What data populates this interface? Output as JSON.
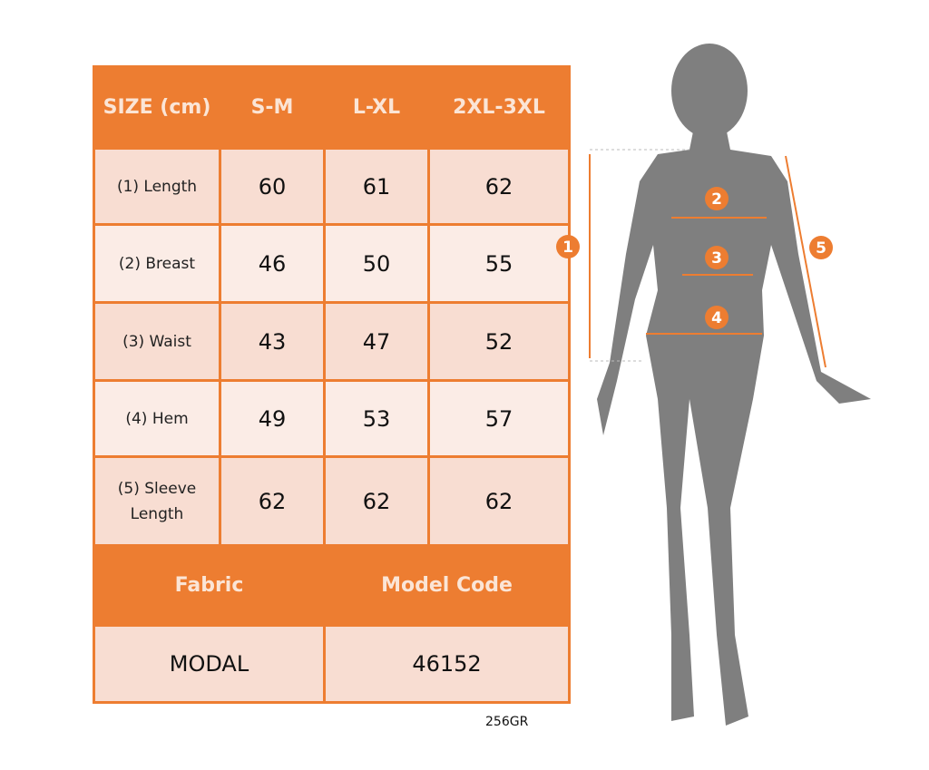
{
  "header": {
    "size": "SIZE (cm)",
    "columns": [
      "S-M",
      "L-XL",
      "2XL-3XL"
    ]
  },
  "rows": [
    {
      "label": "(1) Length",
      "values": [
        "60",
        "61",
        "62"
      ]
    },
    {
      "label": "(2) Breast",
      "values": [
        "46",
        "50",
        "55"
      ]
    },
    {
      "label": "(3) Waist",
      "values": [
        "43",
        "47",
        "52"
      ]
    },
    {
      "label": "(4) Hem",
      "values": [
        "49",
        "53",
        "57"
      ]
    },
    {
      "label": "(5) Sleeve Length",
      "values": [
        "62",
        "62",
        "62"
      ]
    }
  ],
  "footer": {
    "fabric_label": "Fabric",
    "model_code_label": "Model Code",
    "fabric": "MODAL",
    "model_code": "46152"
  },
  "code": "256GR",
  "markers": [
    "1",
    "2",
    "3",
    "4",
    "5"
  ],
  "colors": {
    "accent": "#ED7D31",
    "row_odd": "#F8DDD2",
    "row_even": "#FBECE6",
    "silhouette": "#7F7F7F"
  }
}
